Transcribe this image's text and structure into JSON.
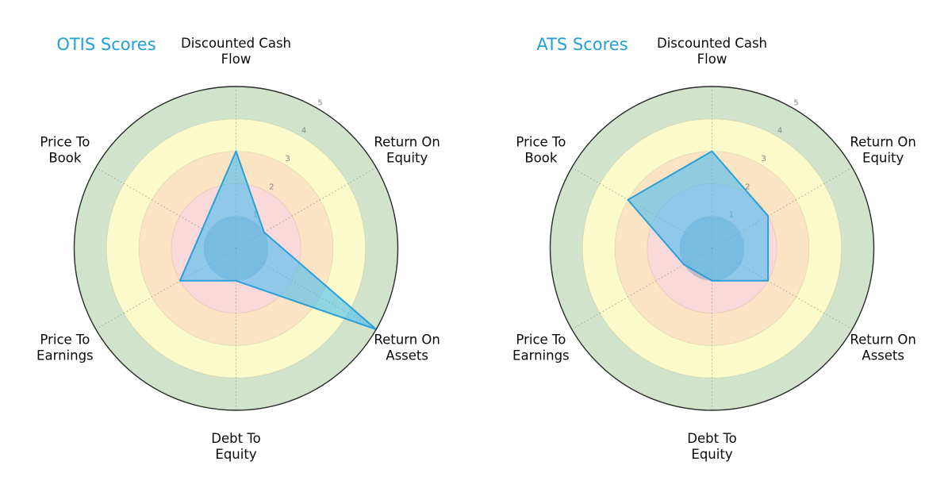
{
  "figure": {
    "background": "#FFFFFF"
  },
  "chart_data": [
    {
      "type": "radar",
      "title": "OTIS Scores",
      "categories": [
        "Discounted Cash Flow",
        "Return On Equity",
        "Return On Assets",
        "Debt To Equity",
        "Price To Earnings",
        "Price To Book"
      ],
      "category_labels_wrapped": [
        [
          "Discounted Cash",
          "Flow"
        ],
        [
          "Return On",
          "Equity"
        ],
        [
          "Return On",
          "Assets"
        ],
        [
          "Debt To",
          "Equity"
        ],
        [
          "Price To",
          "Earnings"
        ],
        [
          "Price To",
          "Book"
        ]
      ],
      "values": [
        3.0,
        1.0,
        5.0,
        1.0,
        2.0,
        1.2
      ],
      "radial_ticks": [
        1,
        2,
        3,
        4,
        5
      ],
      "rlim": [
        0,
        5
      ],
      "start_angle_deg": 90,
      "direction": "clockwise",
      "grid": "dotted-radial-spokes",
      "legend": "none",
      "series_fill": "rgba(72,188,241,0.6)",
      "series_stroke": "#2B9FD8",
      "zone_colors": [
        "rgba(125,150,175,0.45)",
        "#F9D9DA",
        "#FBE4C4",
        "#FAFACA",
        "#D2E3CC"
      ],
      "outer_ring_stroke": "#2B2B2B",
      "title_color": "#229FD6",
      "label_color": "#0A0A0A",
      "tick_color": "#767676"
    },
    {
      "type": "radar",
      "title": "ATS Scores",
      "categories": [
        "Discounted Cash Flow",
        "Return On Equity",
        "Return On Assets",
        "Debt To Equity",
        "Price To Earnings",
        "Price To Book"
      ],
      "category_labels_wrapped": [
        [
          "Discounted Cash",
          "Flow"
        ],
        [
          "Return On",
          "Equity"
        ],
        [
          "Return On",
          "Assets"
        ],
        [
          "Debt To",
          "Equity"
        ],
        [
          "Price To",
          "Earnings"
        ],
        [
          "Price To",
          "Book"
        ]
      ],
      "values": [
        3.0,
        2.0,
        2.0,
        1.0,
        1.0,
        3.0
      ],
      "radial_ticks": [
        1,
        2,
        3,
        4,
        5
      ],
      "rlim": [
        0,
        5
      ],
      "start_angle_deg": 90,
      "direction": "clockwise",
      "grid": "dotted-radial-spokes",
      "legend": "none",
      "series_fill": "rgba(72,188,241,0.6)",
      "series_stroke": "#2B9FD8",
      "zone_colors": [
        "rgba(125,150,175,0.45)",
        "#F9D9DA",
        "#FBE4C4",
        "#FAFACA",
        "#D2E3CC"
      ],
      "outer_ring_stroke": "#2B2B2B",
      "title_color": "#229FD6",
      "label_color": "#0A0A0A",
      "tick_color": "#767676"
    }
  ]
}
